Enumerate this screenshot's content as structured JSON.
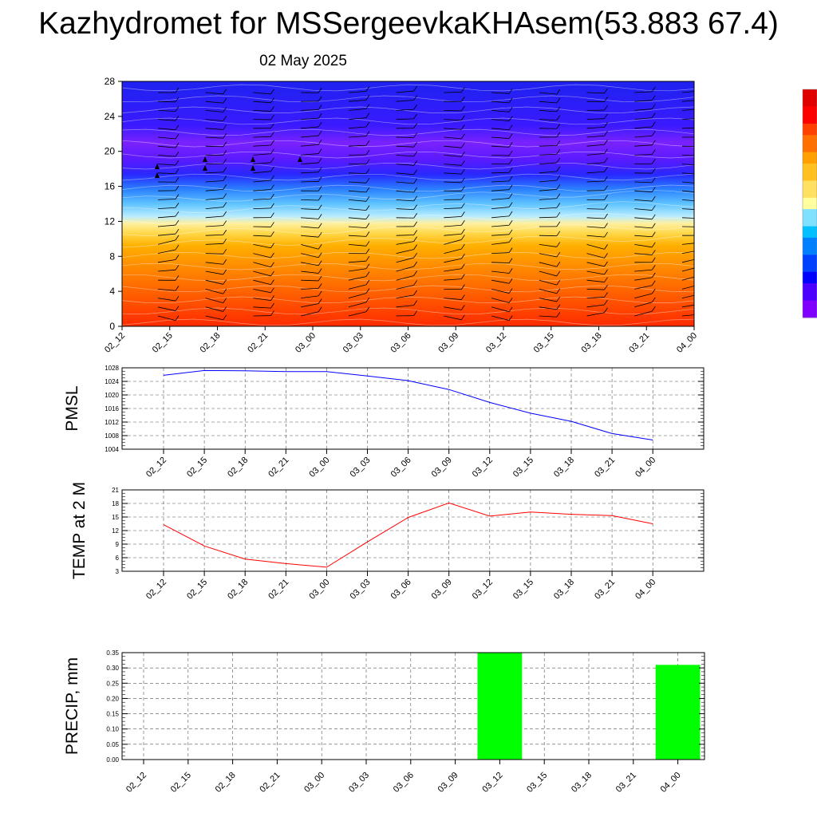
{
  "title": "Kazhydromet for MSSergeevkaKHAsem(53.883 67.4)",
  "subtitle": "02 May 2025",
  "colors": {
    "pmsl_line": "#0000ff",
    "temp_line": "#ff0000",
    "precip_bar": "#00ff00",
    "grid": "#555555"
  },
  "chart_data": [
    {
      "type": "heatmap",
      "name": "temperature-height-section",
      "x_ticks": [
        "02_12",
        "02_15",
        "02_18",
        "02_21",
        "03_00",
        "03_03",
        "03_06",
        "03_09",
        "03_12",
        "03_15",
        "03_18",
        "03_21",
        "04_00"
      ],
      "y_ticks": [
        0,
        4,
        8,
        12,
        16,
        20,
        24,
        28
      ],
      "ylim": [
        0,
        28
      ],
      "colorbar": [
        "#7f00ff",
        "#4b00ff",
        "#0000ff",
        "#0040ff",
        "#0080ff",
        "#00c0ff",
        "#80e0ff",
        "#ffffa0",
        "#ffe060",
        "#ffc020",
        "#ffa000",
        "#ff7000",
        "#ff4000",
        "#ff0000",
        "#e00000"
      ],
      "wind_barbs": true
    },
    {
      "type": "line",
      "ylabel": "PMSL",
      "categories": [
        "02_12",
        "02_15",
        "02_18",
        "02_21",
        "03_00",
        "03_03",
        "03_06",
        "03_09",
        "03_12",
        "03_15",
        "03_18",
        "03_21",
        "04_00"
      ],
      "values": [
        1025.8,
        1027.2,
        1027.1,
        1026.9,
        1026.9,
        1025.6,
        1024.2,
        1021.6,
        1017.8,
        1014.6,
        1012.2,
        1008.6,
        1006.7
      ],
      "ylim": [
        1004,
        1028
      ],
      "y_ticks": [
        1004,
        1008,
        1012,
        1016,
        1020,
        1024,
        1028
      ],
      "grid": true
    },
    {
      "type": "line",
      "ylabel": "TEMP at 2 M",
      "categories": [
        "02_12",
        "02_15",
        "02_18",
        "02_21",
        "03_00",
        "03_03",
        "03_06",
        "03_09",
        "03_12",
        "03_15",
        "03_18",
        "03_21",
        "04_00"
      ],
      "values": [
        13.3,
        8.6,
        5.7,
        4.7,
        3.9,
        9.5,
        14.9,
        18.1,
        15.2,
        16.1,
        15.6,
        15.3,
        13.5
      ],
      "ylim": [
        3,
        21
      ],
      "y_ticks": [
        3,
        6,
        9,
        12,
        15,
        18,
        21
      ],
      "grid": true
    },
    {
      "type": "bar",
      "ylabel": "PRECIP, mm",
      "categories": [
        "02_12",
        "02_15",
        "02_18",
        "02_21",
        "03_00",
        "03_03",
        "03_06",
        "03_09",
        "03_12",
        "03_15",
        "03_18",
        "03_21",
        "04_00"
      ],
      "values": [
        0,
        0,
        0,
        0,
        0,
        0,
        0,
        0,
        0.35,
        0,
        0,
        0,
        0.31
      ],
      "ylim": [
        0,
        0.35
      ],
      "y_ticks": [
        "0.00",
        "0.05",
        "0.10",
        "0.15",
        "0.20",
        "0.25",
        "0.30",
        "0.35"
      ],
      "grid": true
    }
  ]
}
